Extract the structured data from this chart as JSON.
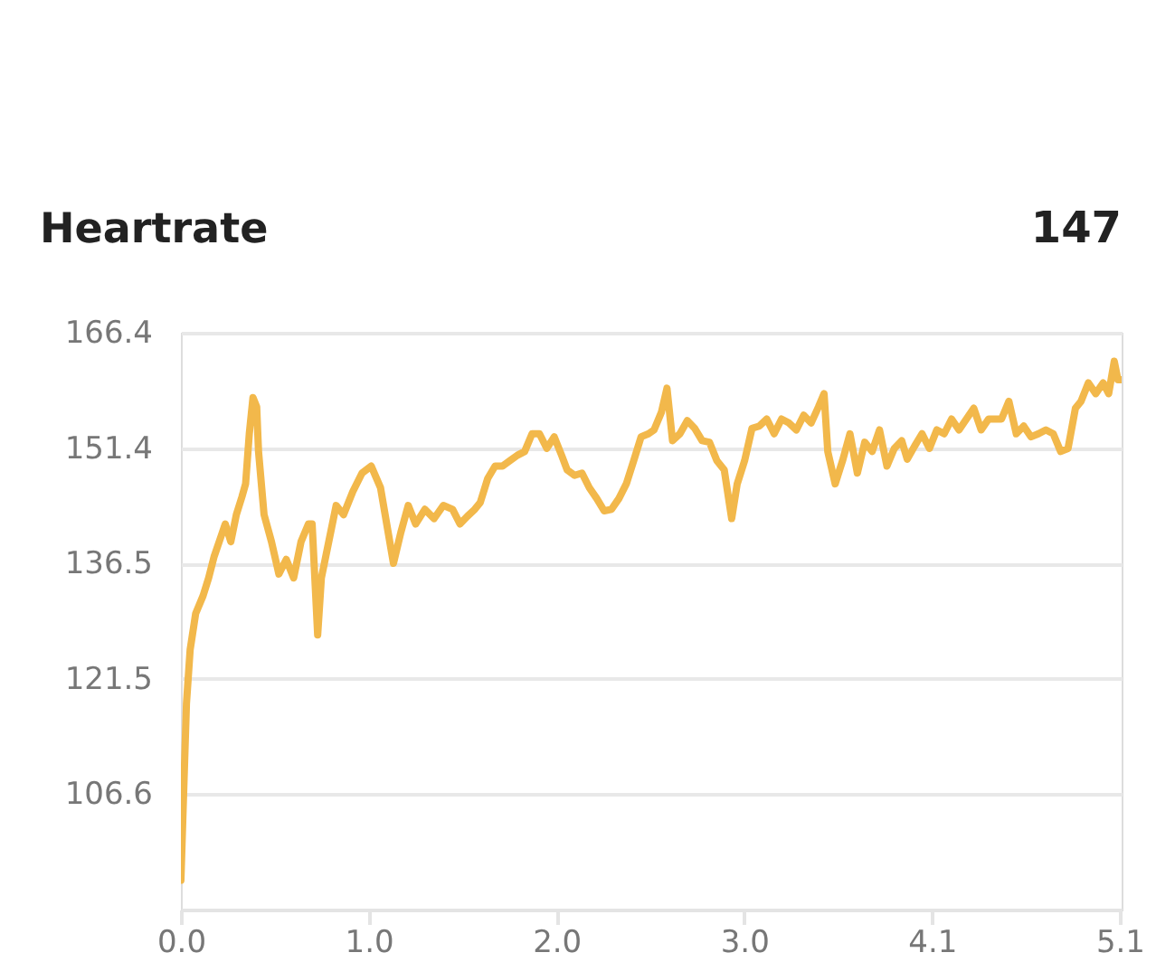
{
  "chart_data": {
    "type": "line",
    "title": "Heartrate",
    "annotations": [
      "147"
    ],
    "x": [
      0,
      0.01,
      0.03,
      0.05,
      0.08,
      0.12,
      0.15,
      0.18,
      0.22,
      0.24,
      0.27,
      0.3,
      0.33,
      0.35,
      0.37,
      0.39,
      0.41,
      0.42,
      0.45,
      0.49,
      0.53,
      0.57,
      0.61,
      0.65,
      0.69,
      0.71,
      0.74,
      0.76,
      0.8,
      0.84,
      0.88,
      0.93,
      0.98,
      1.03,
      1.08,
      1.11,
      1.15,
      1.19,
      1.23,
      1.27,
      1.32,
      1.37,
      1.42,
      1.47,
      1.51,
      1.55,
      1.59,
      1.62,
      1.66,
      1.7,
      1.74,
      1.78,
      1.82,
      1.86,
      1.9,
      1.94,
      1.98,
      2.02,
      2.06,
      2.09,
      2.13,
      2.17,
      2.21,
      2.25,
      2.29,
      2.33,
      2.37,
      2.41,
      2.45,
      2.49,
      2.53,
      2.56,
      2.6,
      2.63,
      2.66,
      2.7,
      2.74,
      2.78,
      2.82,
      2.86,
      2.9,
      2.94,
      2.98,
      3.01,
      3.05,
      3.09,
      3.13,
      3.17,
      3.21,
      3.25,
      3.29,
      3.33,
      3.37,
      3.41,
      3.45,
      3.48,
      3.5,
      3.54,
      3.58,
      3.62,
      3.66,
      3.7,
      3.74,
      3.78,
      3.82,
      3.86,
      3.9,
      3.93,
      3.97,
      4.01,
      4.05,
      4.09,
      4.13,
      4.17,
      4.21,
      4.25,
      4.29,
      4.33,
      4.37,
      4.4,
      4.44,
      4.48,
      4.52,
      4.56,
      4.6,
      4.64,
      4.68,
      4.72,
      4.76,
      4.8,
      4.84,
      4.87,
      4.91,
      4.95,
      4.99,
      5.02,
      5.05,
      5.07,
      5.09
    ],
    "values": [
      95.4,
      103.1,
      118.3,
      125.3,
      130.0,
      132.3,
      134.6,
      137.4,
      140.2,
      141.6,
      139.3,
      142.8,
      145.1,
      146.8,
      153.3,
      158.0,
      156.8,
      151.0,
      142.8,
      139.3,
      135.1,
      137.0,
      134.6,
      139.3,
      141.6,
      141.6,
      127.2,
      134.6,
      139.3,
      144.0,
      142.8,
      145.8,
      148.2,
      149.1,
      146.3,
      142.1,
      136.5,
      140.5,
      144.0,
      141.6,
      143.5,
      142.3,
      144.0,
      143.5,
      141.6,
      142.6,
      143.5,
      144.4,
      147.5,
      149.1,
      149.1,
      149.8,
      150.5,
      151.0,
      153.3,
      153.3,
      151.4,
      152.9,
      150.5,
      148.6,
      147.9,
      148.2,
      146.3,
      144.9,
      143.3,
      143.5,
      144.9,
      146.8,
      149.8,
      152.9,
      153.3,
      153.8,
      156.1,
      159.2,
      152.4,
      153.3,
      155.0,
      154.0,
      152.4,
      152.2,
      149.8,
      148.6,
      142.3,
      146.8,
      149.8,
      154.0,
      154.3,
      155.2,
      153.3,
      155.2,
      154.7,
      153.8,
      155.7,
      154.7,
      156.8,
      158.5,
      151.0,
      146.8,
      149.8,
      153.3,
      148.2,
      152.2,
      151.0,
      153.8,
      149.1,
      151.4,
      152.4,
      150.0,
      151.7,
      153.3,
      151.4,
      153.8,
      153.3,
      155.2,
      153.8,
      155.2,
      156.6,
      153.8,
      155.2,
      155.2,
      155.2,
      157.5,
      153.3,
      154.3,
      152.9,
      153.3,
      153.8,
      153.3,
      151.0,
      151.4,
      156.6,
      157.5,
      159.9,
      158.5,
      159.9,
      158.5,
      162.7,
      160.3,
      160.3
    ],
    "color": "#f2b84b",
    "xlim": [
      0,
      5.09
    ],
    "xticks": [
      {
        "value": 0,
        "label": "0.0"
      },
      {
        "value": 1.016,
        "label": "1.0"
      },
      {
        "value": 2.032,
        "label": "2.0"
      },
      {
        "value": 3.048,
        "label": "3.0"
      },
      {
        "value": 4.064,
        "label": "4.1"
      },
      {
        "value": 5.08,
        "label": "5.1"
      }
    ],
    "ylim": [
      91.6,
      166.4
    ],
    "yticks": [
      106.6,
      121.5,
      136.5,
      151.4,
      166.4
    ],
    "grid": "y"
  }
}
